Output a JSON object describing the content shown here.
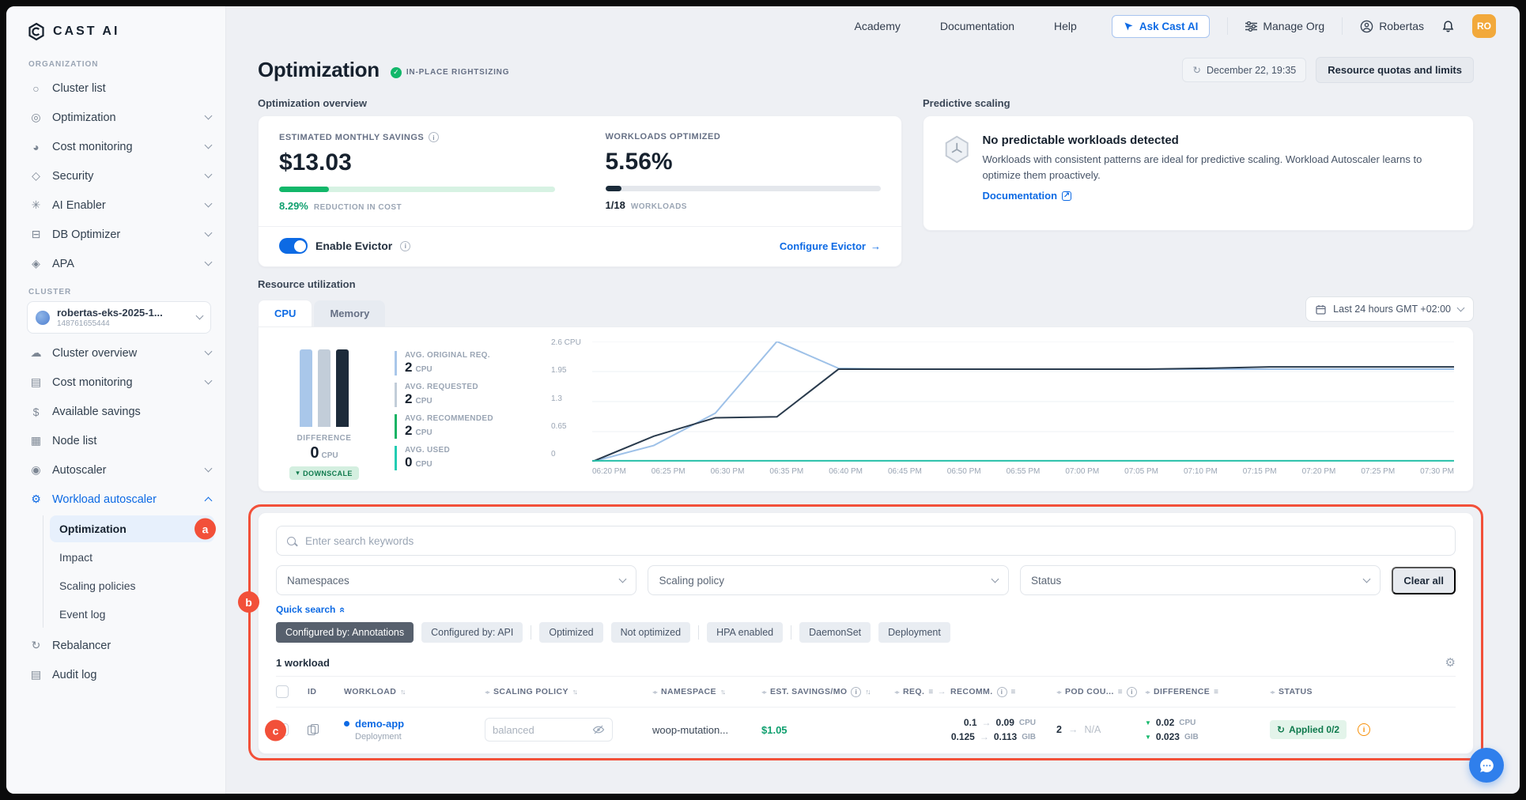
{
  "icons": {
    "check": "✓",
    "sort": "↑↓",
    "info": "i",
    "filter": "≡",
    "resize": "◂▸",
    "arrow": "→",
    "refresh": "↻",
    "external": "↗",
    "gear": "⚙",
    "triangle_down": "▼",
    "caret_down": "▾",
    "double_caret": "«"
  },
  "annotations": {
    "a": "a",
    "b": "b",
    "c": "c"
  },
  "topnav": {
    "links": [
      "Academy",
      "Documentation",
      "Help"
    ],
    "ask_cast_ai": "Ask Cast AI",
    "manage_org": "Manage Org",
    "user_name": "Robertas",
    "avatar_initials": "RO"
  },
  "sidebar": {
    "logo_text": "CAST AI",
    "organization_label": "ORGANIZATION",
    "organization_items": [
      {
        "icon": "○",
        "label": "Cluster list"
      },
      {
        "icon": "◎",
        "label": "Optimization",
        "chevron": "down"
      },
      {
        "icon": "◕",
        "label": "Cost monitoring",
        "chevron": "down"
      },
      {
        "icon": "◇",
        "label": "Security",
        "chevron": "down"
      },
      {
        "icon": "✳",
        "label": "AI Enabler",
        "chevron": "down"
      },
      {
        "icon": "⊟",
        "label": "DB Optimizer",
        "chevron": "down"
      },
      {
        "icon": "◈",
        "label": "APA",
        "chevron": "down"
      }
    ],
    "cluster_label": "CLUSTER",
    "cluster_selector": {
      "name": "robertas-eks-2025-1...",
      "id": "148761655444"
    },
    "cluster_items": [
      {
        "icon": "☁",
        "label": "Cluster overview",
        "chevron": "down"
      },
      {
        "icon": "▤",
        "label": "Cost monitoring",
        "chevron": "down"
      },
      {
        "icon": "$",
        "label": "Available savings"
      },
      {
        "icon": "▦",
        "label": "Node list"
      },
      {
        "icon": "◉",
        "label": "Autoscaler",
        "chevron": "down"
      },
      {
        "icon": "⚙",
        "label": "Workload autoscaler",
        "chevron": "up",
        "active": true,
        "children": [
          "Optimization",
          "Impact",
          "Scaling policies",
          "Event log"
        ],
        "active_child": 0
      },
      {
        "icon": "↻",
        "label": "Rebalancer"
      },
      {
        "icon": "▤",
        "label": "Audit log"
      }
    ]
  },
  "page": {
    "title": "Optimization",
    "badge": "IN-PLACE RIGHTSIZING",
    "timestamp": "December 22, 19:35",
    "quotas_button": "Resource quotas and limits"
  },
  "overview": {
    "section_label": "Optimization overview",
    "savings": {
      "label": "ESTIMATED MONTHLY SAVINGS",
      "value": "$13.03",
      "percent": "8.29%",
      "percent_label": "REDUCTION IN COST",
      "bar_fill_pct": 18
    },
    "optimized": {
      "label": "WORKLOADS OPTIMIZED",
      "value": "5.56%",
      "count": "1/18",
      "count_label": "WORKLOADS",
      "bar_fill_pct": 6
    },
    "evictor": {
      "toggle_label": "Enable Evictor",
      "link_label": "Configure Evictor",
      "link_arrow": "→"
    }
  },
  "predictive": {
    "section_label": "Predictive scaling",
    "title": "No predictable workloads detected",
    "body": "Workloads with consistent patterns are ideal for predictive scaling. Workload Autoscaler learns to optimize them proactively.",
    "link_label": "Documentation"
  },
  "resource": {
    "section_label": "Resource utilization",
    "tabs": [
      "CPU",
      "Memory"
    ],
    "active_tab": "CPU",
    "date_range": "Last 24 hours GMT +02:00",
    "difference": {
      "label": "DIFFERENCE",
      "value": "0",
      "unit": "CPU",
      "badge": "DOWNSCALE"
    },
    "stats": [
      {
        "label": "AVG. ORIGINAL REQ.",
        "value": "2",
        "unit": "CPU",
        "color": "#a9c7ea"
      },
      {
        "label": "AVG. REQUESTED",
        "value": "2",
        "unit": "CPU",
        "color": "#c2cdd9"
      },
      {
        "label": "AVG. RECOMMENDED",
        "value": "2",
        "unit": "CPU",
        "color": "#16b364"
      },
      {
        "label": "AVG. USED",
        "value": "0",
        "unit": "CPU",
        "color": "#22ccb2"
      }
    ]
  },
  "chart_data": [
    {
      "type": "bar",
      "title": "Average CPU comparison",
      "categories": [
        "avg original request",
        "avg requested",
        "avg recommended"
      ],
      "values": [
        2,
        2,
        2
      ],
      "colors": [
        "#a9c7ea",
        "#c2cdd9",
        "#1d2b3a"
      ],
      "ylim": [
        0,
        2.2
      ]
    },
    {
      "type": "line",
      "title": "CPU utilization over time",
      "x": [
        "06:20 PM",
        "06:25 PM",
        "06:30 PM",
        "06:35 PM",
        "06:40 PM",
        "06:45 PM",
        "06:50 PM",
        "06:55 PM",
        "07:00 PM",
        "07:05 PM",
        "07:10 PM",
        "07:15 PM",
        "07:20 PM",
        "07:25 PM",
        "07:30 PM"
      ],
      "y_ticks": [
        "2.6 CPU",
        "1.95",
        "1.3",
        "0.65",
        "0"
      ],
      "ylim": [
        0,
        2.6
      ],
      "legend": "off",
      "grid": "horizontal",
      "series": [
        {
          "name": "original request",
          "color": "#9ec1e8",
          "values": [
            0,
            0.35,
            1.05,
            2.6,
            2.02,
            2.0,
            2.0,
            2.0,
            2.0,
            2.0,
            2.0,
            2.0,
            2.0,
            2.0,
            2.0
          ]
        },
        {
          "name": "requested",
          "color": "#2a3b4d",
          "values": [
            0,
            0.55,
            0.95,
            0.97,
            2.0,
            2.0,
            2.0,
            2.0,
            2.0,
            2.0,
            2.02,
            2.05,
            2.05,
            2.05,
            2.05
          ]
        },
        {
          "name": "used",
          "color": "#27c0a9",
          "values": [
            0.02,
            0.02,
            0.02,
            0.02,
            0.02,
            0.02,
            0.02,
            0.02,
            0.02,
            0.02,
            0.02,
            0.02,
            0.02,
            0.02,
            0.02
          ]
        }
      ]
    }
  ],
  "workloads": {
    "search_placeholder": "Enter search keywords",
    "filters": [
      "Namespaces",
      "Scaling policy",
      "Status"
    ],
    "clear_all": "Clear all",
    "quick_search": "Quick search",
    "chips": [
      {
        "label": "Configured by: Annotations",
        "active": true,
        "group": 0
      },
      {
        "label": "Configured by: API",
        "group": 0
      },
      {
        "label": "Optimized",
        "group": 1
      },
      {
        "label": "Not optimized",
        "group": 1
      },
      {
        "label": "HPA enabled",
        "group": 2
      },
      {
        "label": "DaemonSet",
        "group": 3
      },
      {
        "label": "Deployment",
        "group": 3
      }
    ],
    "count_label": "1 workload",
    "table": {
      "columns": [
        {
          "label": "ID"
        },
        {
          "label": "WORKLOAD",
          "sort": true
        },
        {
          "label": "SCALING POLICY",
          "sort": true,
          "handle": true
        },
        {
          "label": "NAMESPACE",
          "sort": true,
          "handle": true
        },
        {
          "label": "EST. SAVINGS/MO",
          "info": true,
          "sort": true,
          "handle": true
        },
        {
          "label": "REQ.",
          "filter": true,
          "arrow_to": "RECOMM.",
          "info": true,
          "filter2": true,
          "handle": true
        },
        {
          "label": "POD COU...",
          "info": true,
          "filter": true,
          "handle": true
        },
        {
          "label": "DIFFERENCE",
          "filter": true,
          "handle": true
        },
        {
          "label": "STATUS",
          "handle": true
        }
      ],
      "row": {
        "name": "demo-app",
        "type": "Deployment",
        "scaling_policy": "balanced",
        "namespace": "woop-mutation...",
        "savings": "$1.05",
        "req_cpu": "0.1",
        "recomm_cpu": "0.09",
        "cpu_unit": "CPU",
        "req_gib": "0.125",
        "recomm_gib": "0.113",
        "gib_unit": "GIB",
        "pod_count": "2",
        "pod_recomm": "N/A",
        "diff_cpu": "0.02",
        "diff_gib": "0.023",
        "status": "Applied 0/2"
      }
    }
  }
}
